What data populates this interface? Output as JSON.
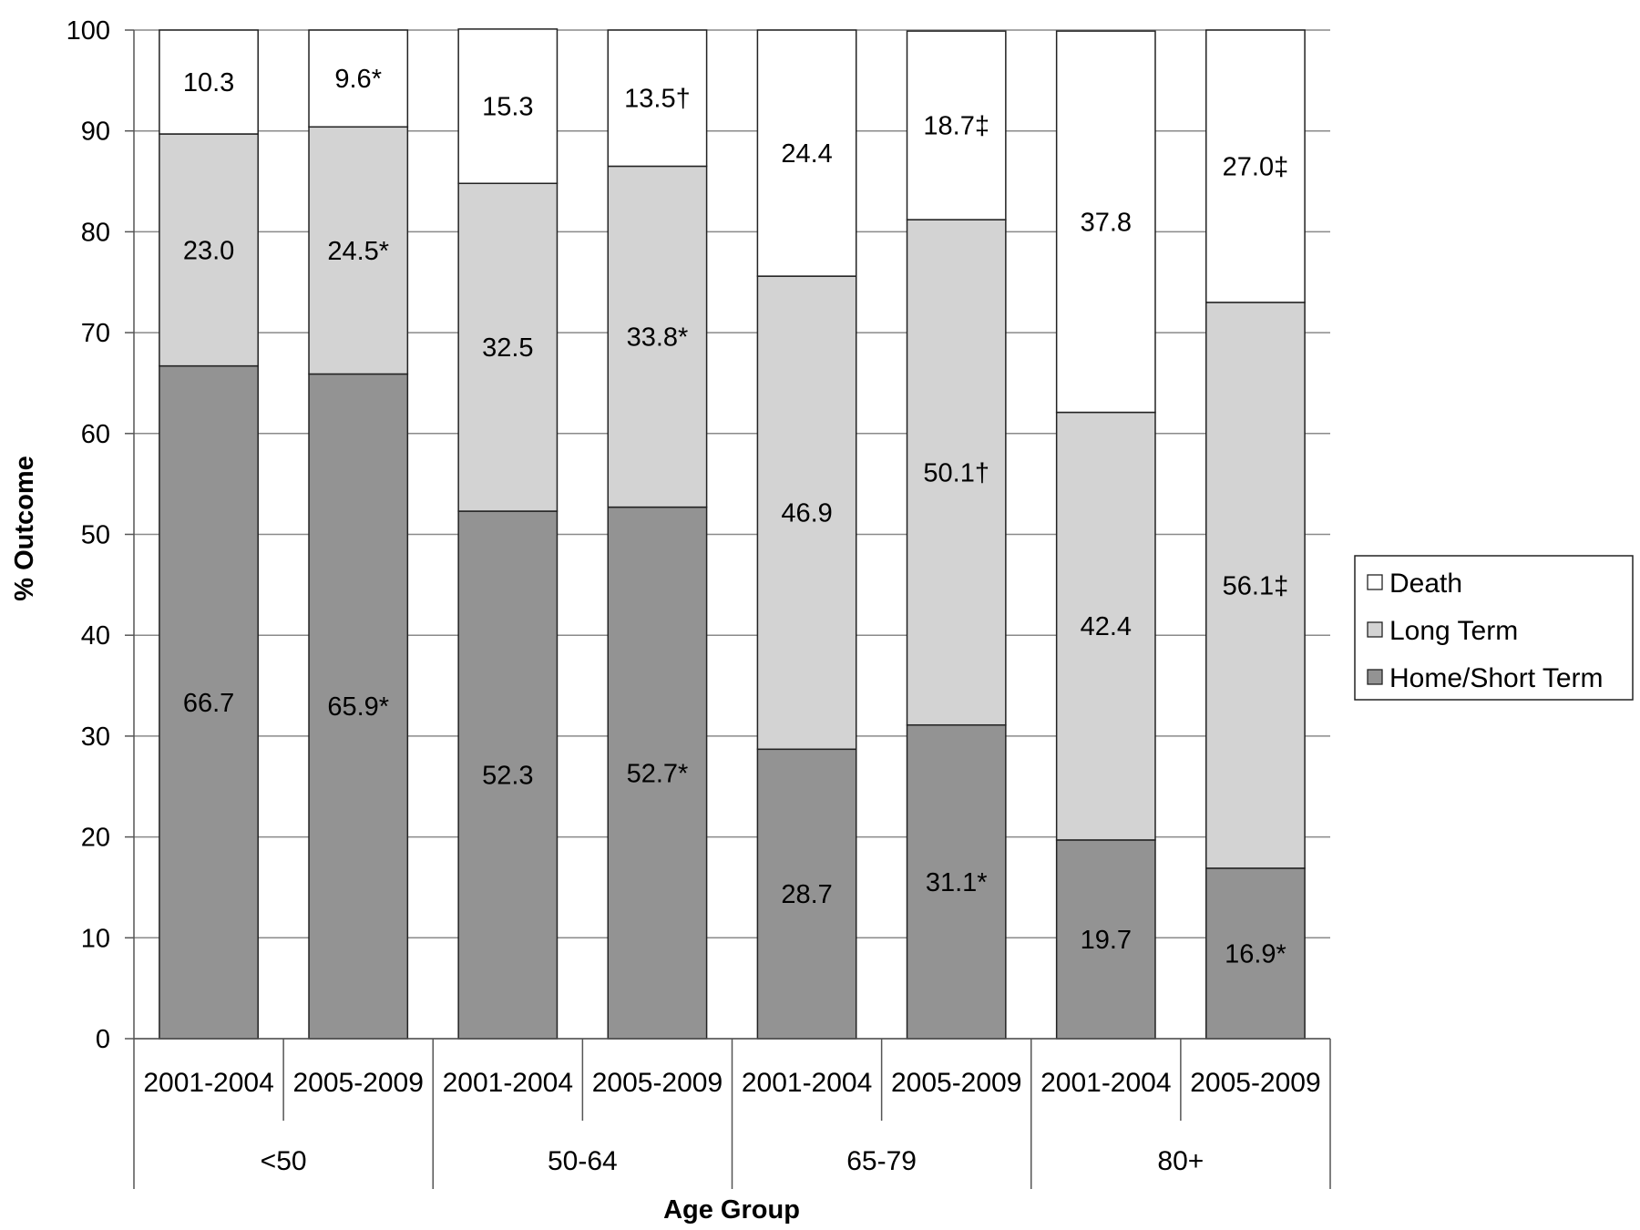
{
  "chart_data": {
    "type": "bar",
    "stacked": true,
    "xlabel": "Age Group",
    "ylabel": "% Outcome",
    "ylim": [
      0,
      100
    ],
    "yticks": [
      0,
      10,
      20,
      30,
      40,
      50,
      60,
      70,
      80,
      90,
      100
    ],
    "grid": true,
    "legend_position": "right",
    "groups": [
      "<50",
      "50-64",
      "65-79",
      "80+"
    ],
    "categories": [
      "2001-2004",
      "2005-2009",
      "2001-2004",
      "2005-2009",
      "2001-2004",
      "2005-2009",
      "2001-2004",
      "2005-2009"
    ],
    "series": [
      {
        "name": "Home/Short Term",
        "color": "#939393",
        "values": [
          66.7,
          65.9,
          52.3,
          52.7,
          28.7,
          31.1,
          19.7,
          16.9
        ],
        "labels": [
          "66.7",
          "65.9*",
          "52.3",
          "52.7*",
          "28.7",
          "31.1*",
          "19.7",
          "16.9*"
        ]
      },
      {
        "name": "Long Term",
        "color": "#d3d3d3",
        "values": [
          23.0,
          24.5,
          32.5,
          33.8,
          46.9,
          50.1,
          42.4,
          56.1
        ],
        "labels": [
          "23.0",
          "24.5*",
          "32.5",
          "33.8*",
          "46.9",
          "50.1†",
          "42.4",
          "56.1‡"
        ]
      },
      {
        "name": "Death",
        "color": "#ffffff",
        "values": [
          10.3,
          9.6,
          15.3,
          13.5,
          24.4,
          18.7,
          37.8,
          27.0
        ],
        "labels": [
          "10.3",
          "9.6*",
          "15.3",
          "13.5†",
          "24.4",
          "18.7‡",
          "37.8",
          "27.0‡"
        ]
      }
    ],
    "legend_order": [
      "Death",
      "Long Term",
      "Home/Short Term"
    ]
  }
}
